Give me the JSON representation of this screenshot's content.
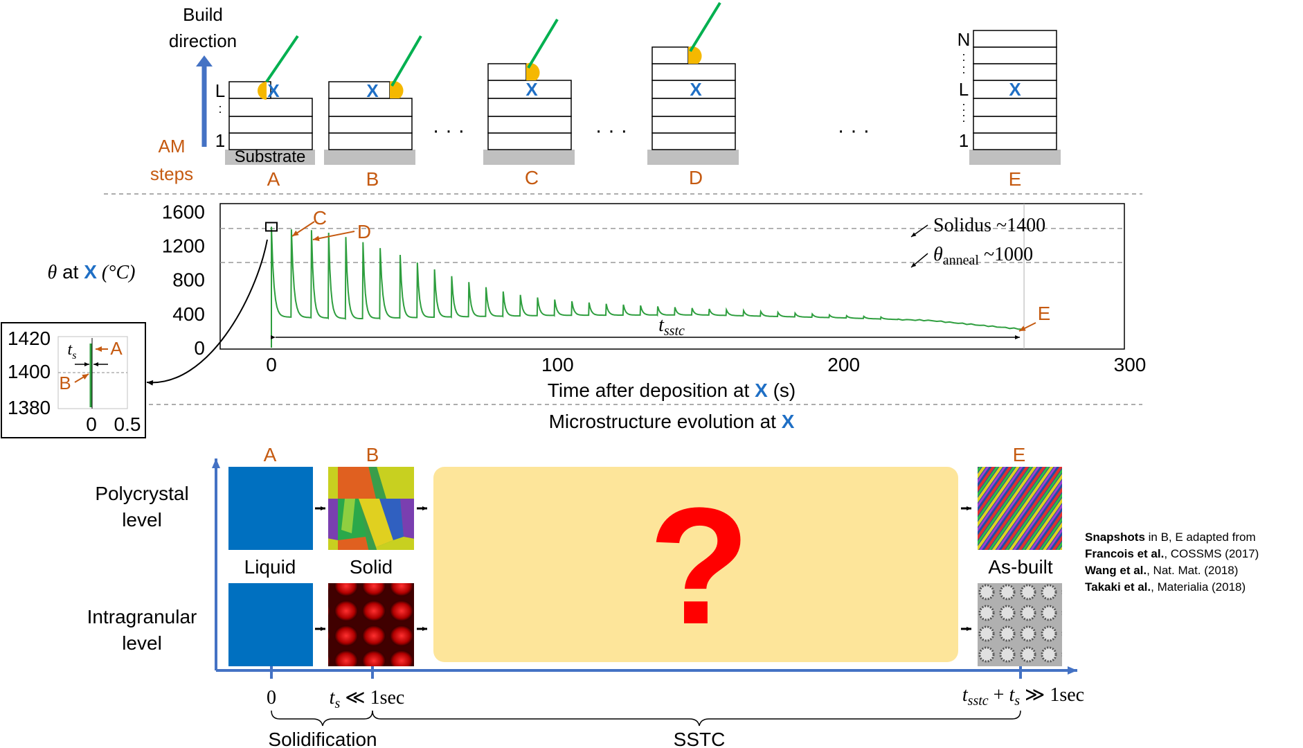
{
  "colors": {
    "orange": "#C55A11",
    "blue": "#1F6FC5",
    "green": "#2E9E3E",
    "laser": "#00B050",
    "meltpool": "#F5B800",
    "axis_blue": "#4472C4",
    "liquid": "#0070C0",
    "question_bg": "#FDE59A",
    "question": "#FF0000",
    "substrate": "#C0C0C0"
  },
  "build": {
    "direction_line1": "Build",
    "direction_line2": "direction",
    "am_steps_line1": "AM",
    "am_steps_line2": "steps",
    "layer_L": "L",
    "layer_1": "1",
    "layer_N": "N",
    "substrate_label": "Substrate",
    "point_mark": "X",
    "ellipsis": "· · ·",
    "stage_labels": [
      "A",
      "B",
      "C",
      "D",
      "E"
    ]
  },
  "chart_data": {
    "type": "line",
    "xlabel_prefix": "Time after deposition at ",
    "xlabel_mark": "X",
    "xlabel_suffix": " (s)",
    "ylabel_theta": "θ",
    "ylabel_at": " at ",
    "ylabel_mark": "X",
    "ylabel_unit": " (°C)",
    "x_ticks": [
      "0",
      "100",
      "200",
      "300"
    ],
    "y_ticks": [
      "0",
      "400",
      "800",
      "1200",
      "1600"
    ],
    "xlim": [
      0,
      300
    ],
    "ylim": [
      0,
      1700
    ],
    "solidus_label": "Solidus ~1400",
    "solidus_value": 1400,
    "anneal_label_theta": "θ",
    "anneal_label_sub": "anneal",
    "anneal_label_value": " ~1000",
    "anneal_value": 1000,
    "annotations": [
      "C",
      "D",
      "E"
    ],
    "tsstc_label": "t",
    "tsstc_sub": "sstc",
    "end_time": 263,
    "series": [
      {
        "peaks": [
          [
            0,
            1420
          ],
          [
            7,
            1390
          ],
          [
            14,
            1380
          ],
          [
            20,
            1350
          ],
          [
            26,
            1300
          ],
          [
            32,
            1240
          ],
          [
            38,
            1170
          ],
          [
            45,
            1090
          ],
          [
            51,
            1000
          ],
          [
            57,
            920
          ],
          [
            63,
            840
          ],
          [
            69,
            770
          ],
          [
            75,
            710
          ],
          [
            81,
            660
          ],
          [
            87,
            620
          ],
          [
            93,
            590
          ],
          [
            99,
            565
          ],
          [
            105,
            545
          ],
          [
            111,
            530
          ],
          [
            117,
            515
          ],
          [
            123,
            505
          ],
          [
            129,
            495
          ],
          [
            135,
            485
          ],
          [
            141,
            475
          ],
          [
            147,
            465
          ],
          [
            153,
            455
          ],
          [
            159,
            445
          ],
          [
            165,
            435
          ],
          [
            171,
            425
          ],
          [
            177,
            415
          ],
          [
            183,
            405
          ],
          [
            189,
            395
          ],
          [
            195,
            385
          ],
          [
            201,
            375
          ],
          [
            207,
            368
          ],
          [
            213,
            360
          ]
        ],
        "baseline": [
          [
            5,
            360
          ],
          [
            30,
            340
          ],
          [
            60,
            360
          ],
          [
            100,
            380
          ],
          [
            150,
            385
          ],
          [
            200,
            350
          ],
          [
            230,
            320
          ],
          [
            263,
            215
          ]
        ]
      }
    ],
    "inset": {
      "y_ticks": [
        "1420",
        "1400",
        "1380"
      ],
      "x_ticks": [
        "0",
        "0.5"
      ],
      "ts_label": "t",
      "ts_sub": "s",
      "label_A": "A",
      "label_B": "B"
    }
  },
  "micro": {
    "title_prefix": "Microstructure evolution at ",
    "title_mark": "X",
    "stage_labels": [
      "A",
      "B",
      "E"
    ],
    "row1_line1": "Polycrystal",
    "row1_line2": "level",
    "row2_line1": "Intragranular",
    "row2_line2": "level",
    "liquid_label": "Liquid",
    "solid_label": "Solid",
    "asbuilt_label": "As-built",
    "question": "?",
    "axis_zero": "0",
    "axis_ts": "t",
    "axis_ts_sub": "s",
    "axis_ts_rest": " ≪ 1sec",
    "axis_end_t": "t",
    "axis_end_sub1": "sstc",
    "axis_end_mid": " + ",
    "axis_end_t2": "t",
    "axis_end_sub2": "s",
    "axis_end_rest": " ≫ 1sec",
    "solidification": "Solidification",
    "sstc": "SSTC"
  },
  "refs": {
    "line1_bold": "Snapshots",
    "line1_rest": " in B, E adapted from",
    "line2_bold": "Francois et al.",
    "line2_rest": ", COSSMS (2017)",
    "line3_bold": "Wang et al.",
    "line3_rest": ", Nat. Mat. (2018)",
    "line4_bold": "Takaki et al.",
    "line4_rest": ", Materialia (2018)"
  }
}
